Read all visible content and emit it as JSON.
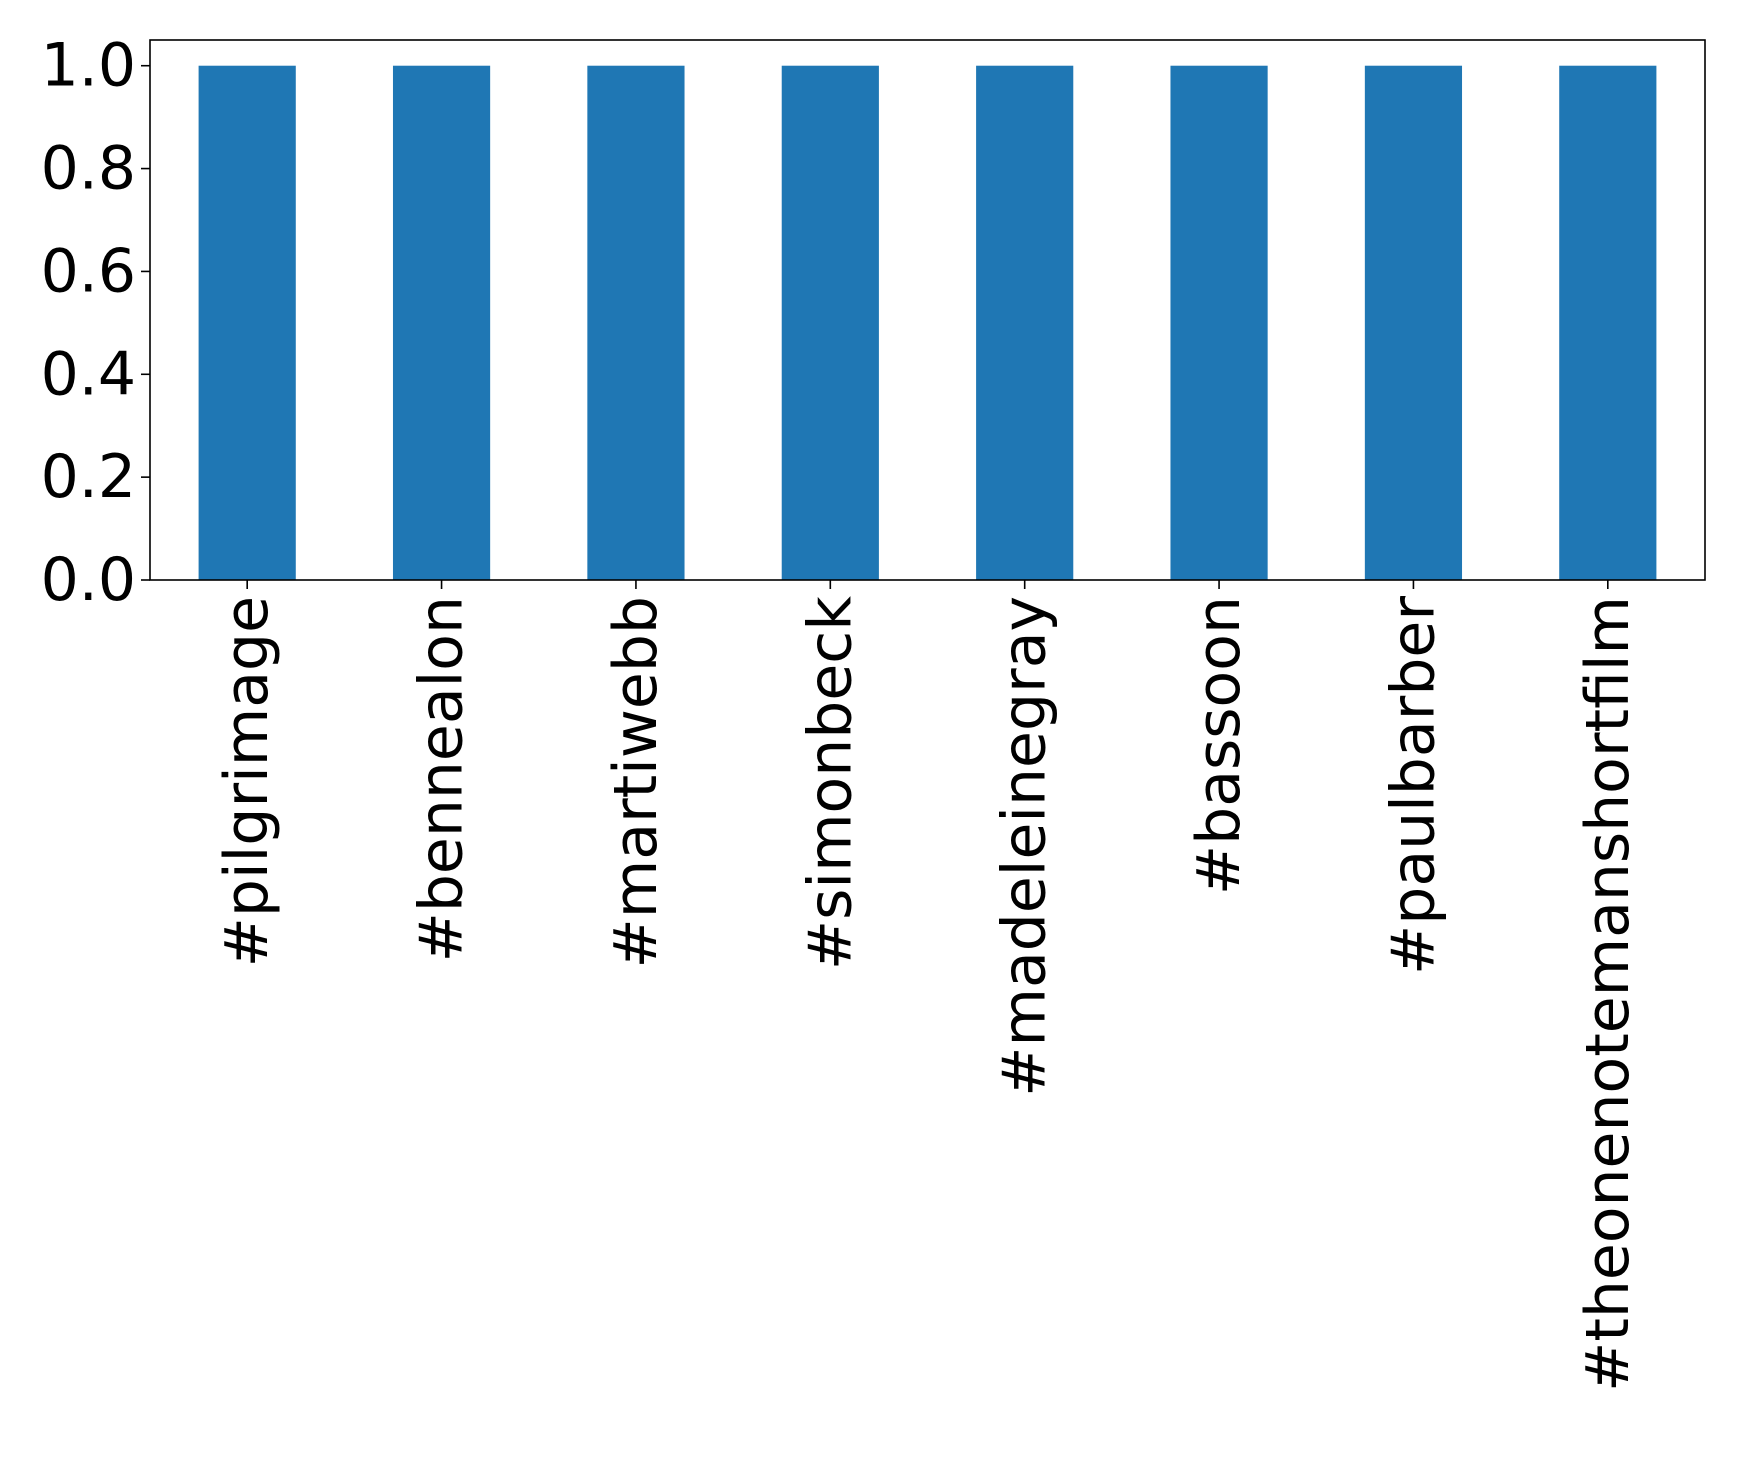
{
  "chart_data": {
    "type": "bar",
    "categories": [
      "#pilgrimage",
      "#bennealon",
      "#martiwebb",
      "#simonbeck",
      "#madeleinegray",
      "#bassoon",
      "#paulbarber",
      "#theonenotemanshortfilm"
    ],
    "values": [
      1.0,
      1.0,
      1.0,
      1.0,
      1.0,
      1.0,
      1.0,
      1.0
    ],
    "title": "",
    "xlabel": "",
    "ylabel": "",
    "ylim": [
      0,
      1.05
    ],
    "yticks": [
      "0.0",
      "0.2",
      "0.4",
      "0.6",
      "0.8",
      "1.0"
    ],
    "grid": false,
    "legend": "none",
    "colors": {
      "bar": "#1f77b4",
      "axis": "#000000",
      "background": "#ffffff"
    }
  }
}
